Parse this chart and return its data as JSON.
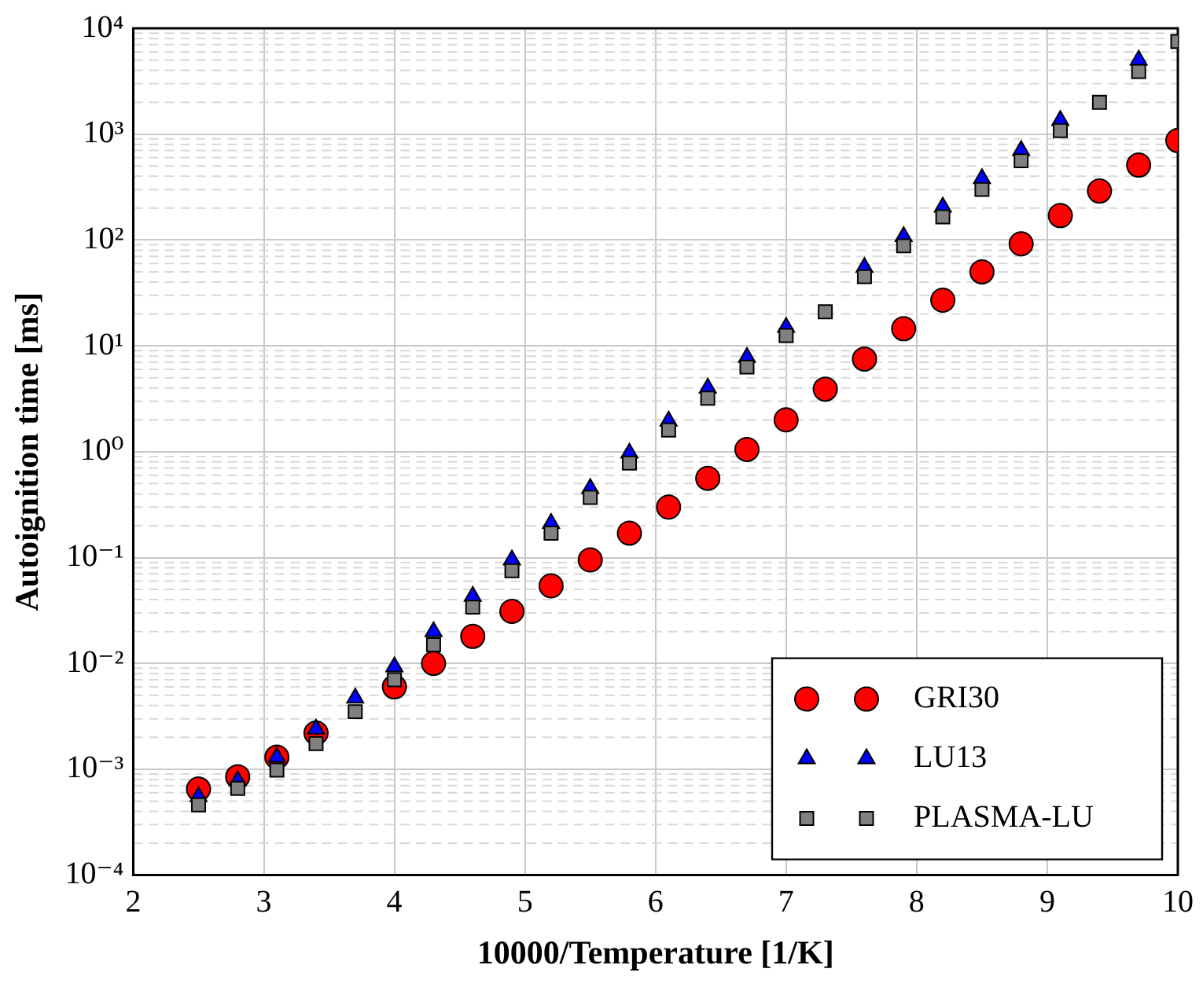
{
  "chart_data": {
    "type": "scatter",
    "xlabel": "10000/Temperature [1/K]",
    "ylabel": "Autoignition time [ms]",
    "log": "y",
    "grid": true,
    "legend": "bottom right",
    "x": [
      2.5,
      2.8,
      3.1,
      3.4,
      3.7,
      4.0,
      4.3,
      4.6,
      4.9,
      5.2,
      5.5,
      5.8,
      6.1,
      6.4,
      6.7,
      7.0,
      7.3,
      7.6,
      7.9,
      8.2,
      8.5,
      8.8,
      9.1,
      9.4,
      9.7,
      10.0
    ],
    "xlim": [
      2,
      10
    ],
    "xticks": [
      2,
      3,
      4,
      5,
      6,
      7,
      8,
      9,
      10
    ],
    "ylim": [
      0.0001,
      10000
    ],
    "yticks": [
      {
        "value": 0.0001,
        "label": "10⁻⁴"
      },
      {
        "value": 0.001,
        "label": "10⁻³"
      },
      {
        "value": 0.01,
        "label": "10⁻²"
      },
      {
        "value": 0.1,
        "label": "10⁻¹"
      },
      {
        "value": 1,
        "label": "10⁰"
      },
      {
        "value": 10,
        "label": "10¹"
      },
      {
        "value": 100,
        "label": "10²"
      },
      {
        "value": 1000,
        "label": "10³"
      },
      {
        "value": 10000,
        "label": "10⁴"
      }
    ],
    "series": [
      {
        "name": "GRI30",
        "color": "#ff0000",
        "marker": "circle",
        "values": [
          0.00065,
          0.00085,
          0.0013,
          0.0022,
          null,
          0.006,
          0.01,
          0.018,
          0.031,
          0.054,
          0.095,
          0.17,
          0.3,
          0.56,
          1.05,
          2.0,
          3.9,
          7.5,
          14.5,
          27,
          50,
          92,
          170,
          290,
          510,
          870
        ]
      },
      {
        "name": "LU13",
        "color": "#0000ff",
        "marker": "triangle",
        "values": [
          0.00055,
          0.00078,
          0.0013,
          0.0024,
          0.0047,
          0.0093,
          0.02,
          0.043,
          0.095,
          0.21,
          0.45,
          0.97,
          1.95,
          4.0,
          7.8,
          15,
          null,
          55,
          108,
          205,
          380,
          700,
          1350,
          null,
          5000,
          null
        ]
      },
      {
        "name": "PLASMA-LU",
        "color": "#808080",
        "marker": "square",
        "values": [
          0.00046,
          0.00066,
          0.00098,
          0.00175,
          0.0035,
          0.007,
          0.015,
          0.034,
          0.075,
          0.17,
          0.37,
          0.78,
          1.6,
          3.2,
          6.3,
          12.5,
          21,
          45,
          88,
          165,
          300,
          560,
          1080,
          2000,
          3900,
          7500
        ]
      }
    ]
  }
}
